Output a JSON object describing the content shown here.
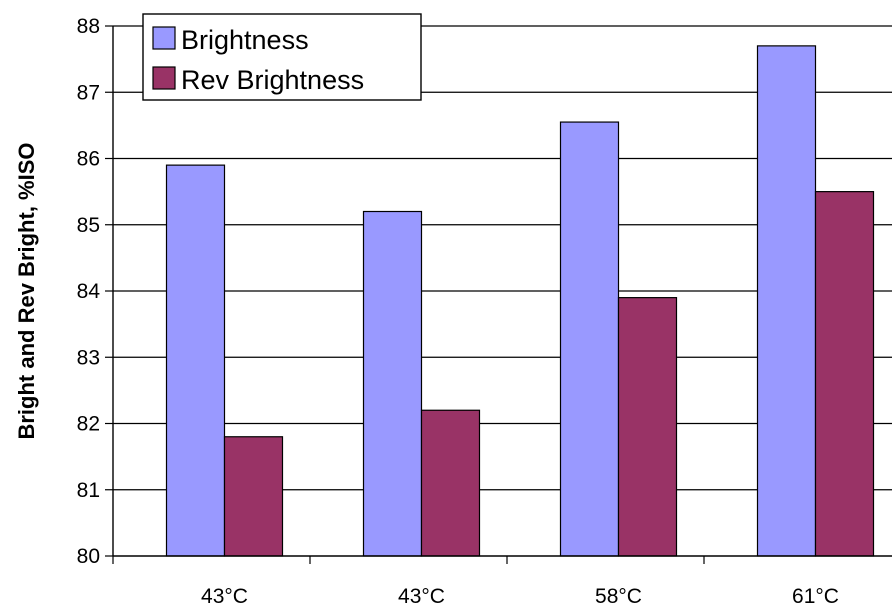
{
  "chart_data": {
    "type": "bar",
    "title": "",
    "xlabel": "",
    "ylabel": "Bright and Rev Bright, %ISO",
    "categories": [
      "43°C",
      "43°C",
      "58°C",
      "61°C"
    ],
    "series": [
      {
        "name": "Brightness",
        "values": [
          85.9,
          85.2,
          86.55,
          87.7
        ],
        "color": "#9999ff"
      },
      {
        "name": "Rev Brightness",
        "values": [
          81.8,
          82.2,
          83.9,
          85.5
        ],
        "color": "#993366"
      }
    ],
    "ylim": [
      80,
      88
    ],
    "yticks": [
      80,
      81,
      82,
      83,
      84,
      85,
      86,
      87,
      88
    ],
    "grid": true,
    "legend_position": "top-left"
  }
}
